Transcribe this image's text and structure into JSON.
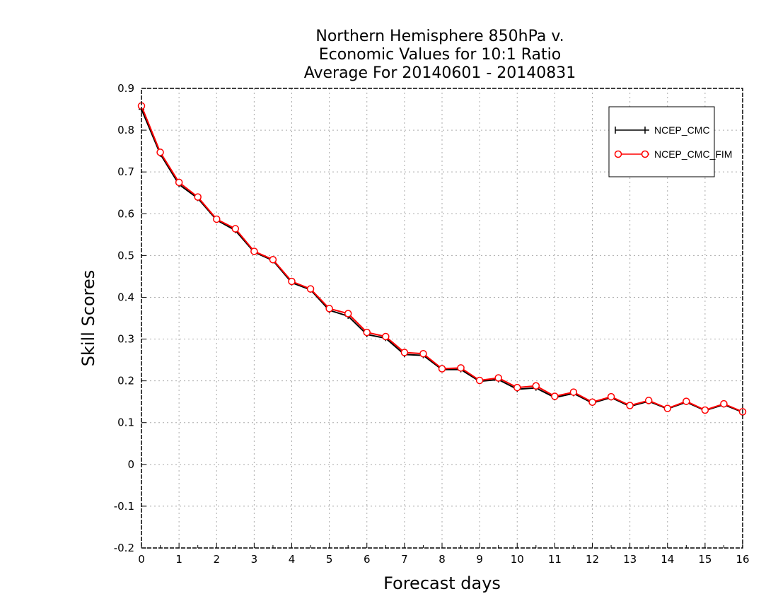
{
  "chart_data": {
    "type": "line",
    "title_lines": [
      "Northern Hemisphere 850hPa v.",
      "Economic Values for 10:1 Ratio",
      "Average For 20140601 - 20140831"
    ],
    "xlabel": "Forecast days",
    "ylabel": "Skill Scores",
    "xlim": [
      0,
      16
    ],
    "ylim": [
      -0.2,
      0.9
    ],
    "x_ticks": [
      "0",
      "1",
      "2",
      "3",
      "4",
      "5",
      "6",
      "7",
      "8",
      "9",
      "10",
      "11",
      "12",
      "13",
      "14",
      "15",
      "16"
    ],
    "y_ticks": [
      "-0.2",
      "-0.1",
      "0",
      "0.1",
      "0.2",
      "0.3",
      "0.4",
      "0.5",
      "0.6",
      "0.7",
      "0.8",
      "0.9"
    ],
    "grid": true,
    "legend_position": "top-right",
    "x": [
      0,
      0.5,
      1,
      1.5,
      2,
      2.5,
      3,
      3.5,
      4,
      4.5,
      5,
      5.5,
      6,
      6.5,
      7,
      7.5,
      8,
      8.5,
      9,
      9.5,
      10,
      10.5,
      11,
      11.5,
      12,
      12.5,
      13,
      13.5,
      14,
      14.5,
      15,
      15.5,
      16
    ],
    "series": [
      {
        "name": "NCEP_CMC",
        "color": "#000000",
        "marker": "plus",
        "values": [
          0.85,
          0.743,
          0.67,
          0.637,
          0.585,
          0.56,
          0.508,
          0.488,
          0.435,
          0.418,
          0.369,
          0.355,
          0.311,
          0.302,
          0.263,
          0.261,
          0.227,
          0.227,
          0.199,
          0.203,
          0.18,
          0.183,
          0.16,
          0.17,
          0.147,
          0.16,
          0.139,
          0.151,
          0.133,
          0.149,
          0.129,
          0.143,
          0.125
        ]
      },
      {
        "name": "NCEP_CMC_FIM",
        "color": "#ff0000",
        "marker": "circle",
        "values": [
          0.858,
          0.747,
          0.675,
          0.64,
          0.587,
          0.564,
          0.51,
          0.49,
          0.438,
          0.42,
          0.373,
          0.361,
          0.316,
          0.306,
          0.268,
          0.265,
          0.229,
          0.231,
          0.201,
          0.207,
          0.184,
          0.188,
          0.163,
          0.173,
          0.149,
          0.162,
          0.141,
          0.153,
          0.134,
          0.151,
          0.13,
          0.145,
          0.126
        ]
      }
    ]
  }
}
